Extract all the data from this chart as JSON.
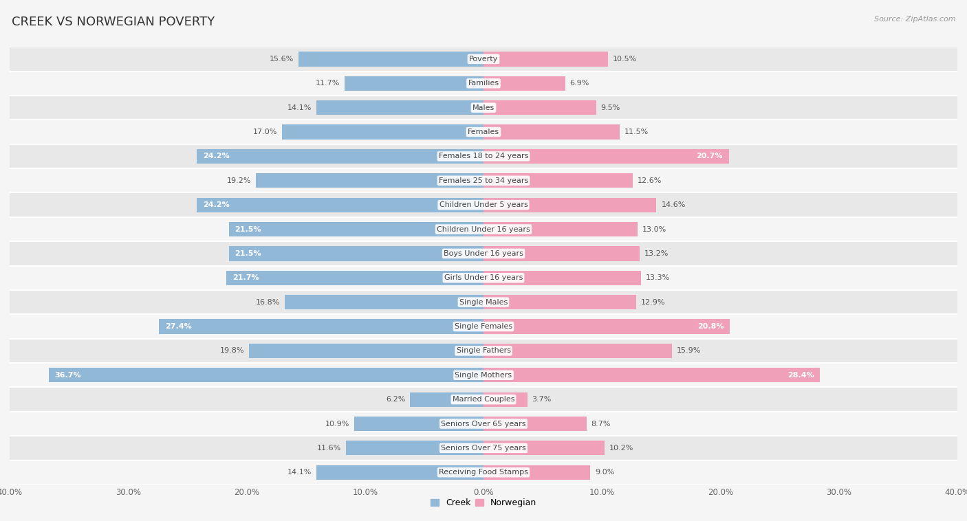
{
  "title": "CREEK VS NORWEGIAN POVERTY",
  "source": "Source: ZipAtlas.com",
  "categories": [
    "Poverty",
    "Families",
    "Males",
    "Females",
    "Females 18 to 24 years",
    "Females 25 to 34 years",
    "Children Under 5 years",
    "Children Under 16 years",
    "Boys Under 16 years",
    "Girls Under 16 years",
    "Single Males",
    "Single Females",
    "Single Fathers",
    "Single Mothers",
    "Married Couples",
    "Seniors Over 65 years",
    "Seniors Over 75 years",
    "Receiving Food Stamps"
  ],
  "creek_values": [
    15.6,
    11.7,
    14.1,
    17.0,
    24.2,
    19.2,
    24.2,
    21.5,
    21.5,
    21.7,
    16.8,
    27.4,
    19.8,
    36.7,
    6.2,
    10.9,
    11.6,
    14.1
  ],
  "norwegian_values": [
    10.5,
    6.9,
    9.5,
    11.5,
    20.7,
    12.6,
    14.6,
    13.0,
    13.2,
    13.3,
    12.9,
    20.8,
    15.9,
    28.4,
    3.7,
    8.7,
    10.2,
    9.0
  ],
  "creek_color": "#92b8d8",
  "norwegian_color": "#f0a0b8",
  "highlight_threshold": 20.0,
  "background_color": "#f5f5f5",
  "row_color_odd": "#e8e8e8",
  "row_color_even": "#f5f5f5",
  "x_max": 40.0,
  "bar_height": 0.6,
  "title_fontsize": 13,
  "label_fontsize": 8,
  "category_fontsize": 8,
  "source_fontsize": 8,
  "legend_fontsize": 9,
  "axis_label_fontsize": 8.5
}
